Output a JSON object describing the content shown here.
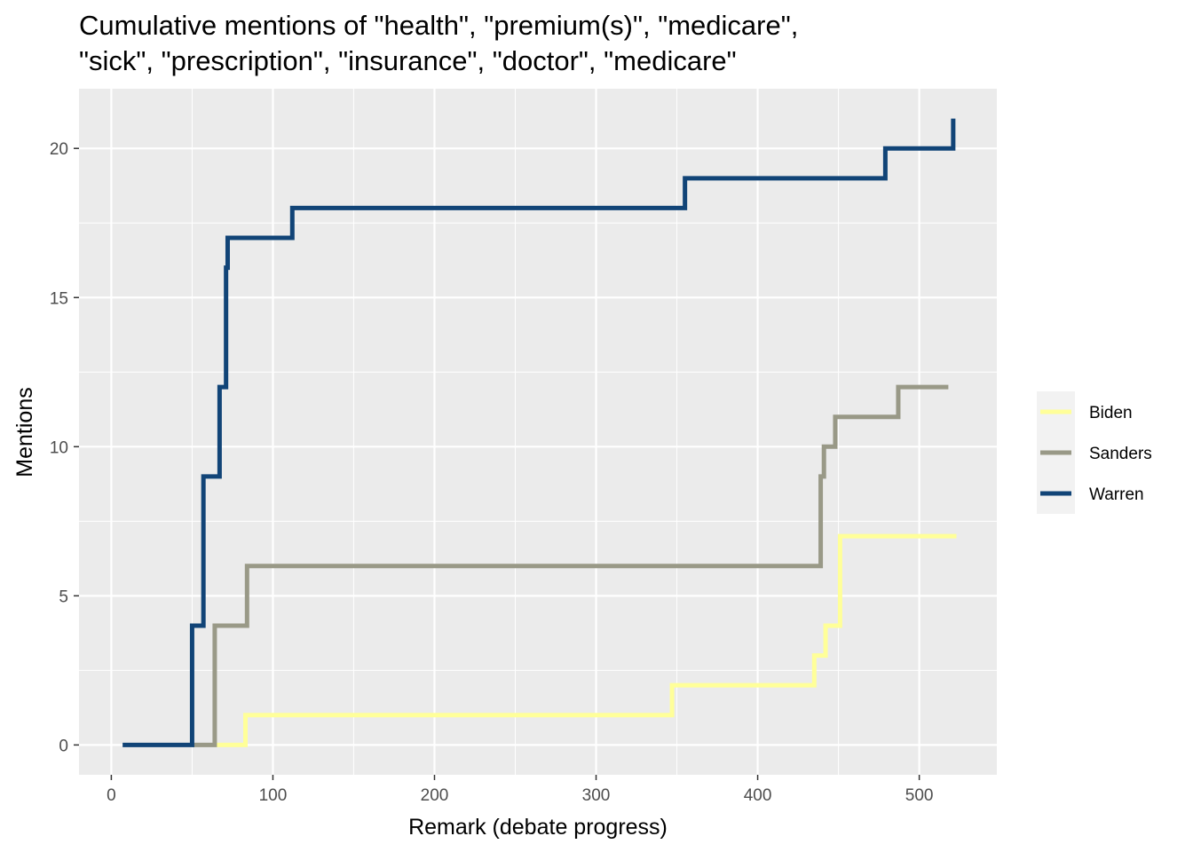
{
  "chart_data": {
    "type": "line",
    "step": true,
    "title_lines": [
      "Cumulative mentions of \"health\", \"premium(s)\", \"medicare\",",
      "\"sick\", \"prescription\", \"insurance\", \"doctor\", \"medicare\""
    ],
    "xlabel": "Remark (debate progress)",
    "ylabel": "Mentions",
    "xlim": [
      -20,
      548
    ],
    "ylim": [
      -1,
      22
    ],
    "x_ticks": [
      0,
      100,
      200,
      300,
      400,
      500
    ],
    "y_ticks": [
      0,
      5,
      10,
      15,
      20
    ],
    "grid": true,
    "legend_position": "right",
    "series": [
      {
        "name": "Biden",
        "color": "#FFFF99",
        "x": [
          65,
          83,
          347,
          435,
          442,
          451,
          523
        ],
        "y": [
          0,
          1,
          2,
          3,
          4,
          7,
          7
        ]
      },
      {
        "name": "Sanders",
        "color": "#999987",
        "x": [
          50,
          64,
          84,
          439,
          441,
          448,
          487,
          518
        ],
        "y": [
          0,
          4,
          6,
          9,
          10,
          11,
          12,
          12
        ]
      },
      {
        "name": "Warren",
        "color": "#114477",
        "x": [
          7,
          50,
          57,
          67,
          71,
          72,
          74,
          112,
          355,
          479,
          520,
          521
        ],
        "y": [
          0,
          4,
          9,
          12,
          16,
          17,
          17,
          18,
          19,
          20,
          20,
          21
        ]
      }
    ]
  }
}
